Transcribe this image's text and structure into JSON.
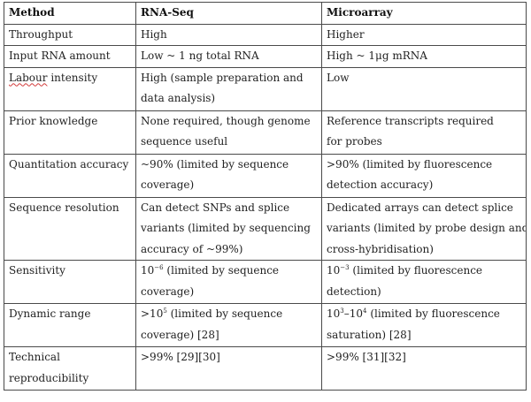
{
  "table": {
    "headers": [
      "Method",
      "RNA-Seq",
      "Microarray"
    ],
    "rows": [
      {
        "label": [
          "Throughput"
        ],
        "rnaseq": [
          "High"
        ],
        "microarray": [
          "Higher"
        ]
      },
      {
        "label": [
          "Input RNA amount"
        ],
        "rnaseq": [
          "Low ~ 1 ng total RNA"
        ],
        "microarray": [
          "High ~ 1μg mRNA"
        ]
      },
      {
        "label_flagged_word": "Labour",
        "label_rest": " intensity",
        "rnaseq": [
          "High (sample preparation and",
          "data analysis)"
        ],
        "microarray": [
          "Low"
        ]
      },
      {
        "label": [
          "Prior knowledge"
        ],
        "rnaseq": [
          "None required, though genome",
          "sequence useful"
        ],
        "microarray": [
          "Reference transcripts required",
          "for probes"
        ]
      },
      {
        "label": [
          "Quantitation accuracy"
        ],
        "rnaseq": [
          "~90% (limited by sequence",
          "coverage)"
        ],
        "microarray": [
          ">90% (limited by fluorescence",
          "detection accuracy)"
        ]
      },
      {
        "label": [
          "Sequence resolution"
        ],
        "rnaseq": [
          "Can detect SNPs and splice",
          "variants (limited by sequencing",
          "accuracy of ~99%)"
        ],
        "microarray": [
          "Dedicated arrays can detect splice",
          "variants (limited by probe design and",
          "cross-hybridisation)"
        ]
      },
      {
        "label": [
          "Sensitivity"
        ],
        "rnaseq_base": "10",
        "rnaseq_exp": "−6",
        "rnaseq_rest": " (limited by sequence",
        "rnaseq_line2": "coverage)",
        "microarray_base": "10",
        "microarray_exp": "−3",
        "microarray_rest": " (limited by fluorescence",
        "microarray_line2": "detection)"
      },
      {
        "label": [
          "Dynamic range"
        ],
        "rnaseq_prefix": ">10",
        "rnaseq_exp": "5",
        "rnaseq_rest": " (limited by sequence",
        "rnaseq_line2": "coverage) [28]",
        "microarray_base1": "10",
        "microarray_exp1": "3",
        "microarray_mid": "–10",
        "microarray_exp2": "4",
        "microarray_rest": " (limited by fluorescence",
        "microarray_line2": "saturation) [28]"
      },
      {
        "label": [
          "Technical",
          "reproducibility"
        ],
        "rnaseq": [
          ">99% [29][30]"
        ],
        "microarray": [
          ">99% [31][32]"
        ]
      }
    ]
  }
}
